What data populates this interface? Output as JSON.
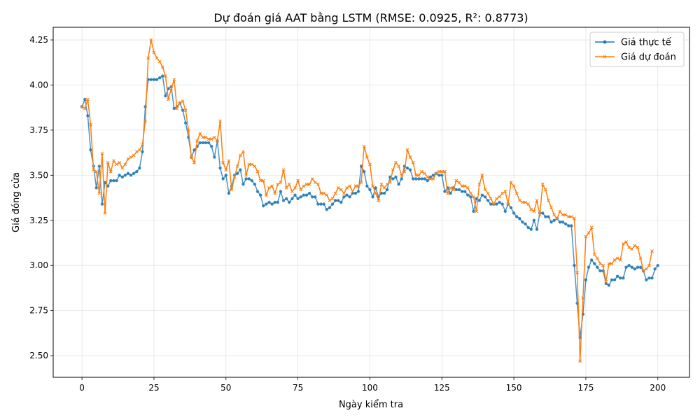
{
  "chart_data": {
    "type": "line",
    "title": "Dự đoán giá AAT bằng LSTM (RMSE: 0.0925, R²: 0.8773)",
    "xlabel": "Ngày kiểm tra",
    "ylabel": "Giá đóng cửa",
    "xlim": [
      -10,
      211
    ],
    "ylim": [
      2.38,
      4.32
    ],
    "xticks": [
      0,
      25,
      50,
      75,
      100,
      125,
      150,
      175,
      200
    ],
    "yticks": [
      2.5,
      2.75,
      3.0,
      3.25,
      3.5,
      3.75,
      4.0,
      4.25
    ],
    "ytick_labels": [
      "2.50",
      "2.75",
      "3.00",
      "3.25",
      "3.50",
      "3.75",
      "4.00",
      "4.25"
    ],
    "grid": true,
    "legend_position": "top-right",
    "series": [
      {
        "name": "Giá thực tế",
        "color": "#1f77b4",
        "marker": "circle",
        "x_start": 0,
        "values": [
          3.88,
          3.92,
          3.83,
          3.64,
          3.55,
          3.43,
          3.55,
          3.34,
          3.46,
          3.44,
          3.47,
          3.47,
          3.47,
          3.5,
          3.49,
          3.5,
          3.51,
          3.5,
          3.51,
          3.52,
          3.54,
          3.63,
          3.88,
          4.03,
          4.03,
          4.03,
          4.03,
          4.04,
          4.05,
          3.94,
          3.98,
          3.99,
          3.87,
          3.88,
          3.9,
          3.86,
          3.79,
          3.71,
          3.6,
          3.64,
          3.66,
          3.68,
          3.68,
          3.68,
          3.68,
          3.66,
          3.6,
          3.69,
          3.54,
          3.48,
          3.5,
          3.4,
          3.44,
          3.5,
          3.51,
          3.53,
          3.45,
          3.48,
          3.48,
          3.47,
          3.45,
          3.41,
          3.39,
          3.33,
          3.34,
          3.35,
          3.34,
          3.35,
          3.35,
          3.41,
          3.36,
          3.37,
          3.35,
          3.37,
          3.39,
          3.37,
          3.38,
          3.39,
          3.39,
          3.4,
          3.38,
          3.38,
          3.34,
          3.34,
          3.34,
          3.31,
          3.32,
          3.34,
          3.36,
          3.36,
          3.35,
          3.38,
          3.39,
          3.38,
          3.4,
          3.4,
          3.41,
          3.55,
          3.52,
          3.44,
          3.42,
          3.38,
          3.43,
          3.38,
          3.4,
          3.4,
          3.42,
          3.49,
          3.48,
          3.49,
          3.45,
          3.48,
          3.55,
          3.54,
          3.53,
          3.48,
          3.48,
          3.48,
          3.48,
          3.48,
          3.47,
          3.49,
          3.5,
          3.51,
          3.5,
          3.5,
          3.41,
          3.43,
          3.4,
          3.43,
          3.42,
          3.42,
          3.41,
          3.41,
          3.39,
          3.38,
          3.3,
          3.37,
          3.36,
          3.39,
          3.38,
          3.36,
          3.34,
          3.34,
          3.34,
          3.35,
          3.34,
          3.3,
          3.34,
          3.32,
          3.29,
          3.27,
          3.26,
          3.24,
          3.23,
          3.21,
          3.2,
          3.25,
          3.2,
          3.29,
          3.29,
          3.27,
          3.27,
          3.24,
          3.25,
          3.26,
          3.24,
          3.24,
          3.23,
          3.22,
          3.22,
          3.0,
          2.79,
          2.6,
          2.73,
          2.92,
          2.99,
          3.03,
          3.01,
          2.99,
          2.97,
          2.97,
          2.9,
          2.89,
          2.92,
          2.92,
          2.94,
          2.93,
          2.93,
          2.99,
          3.0,
          2.99,
          2.98,
          2.99,
          2.99,
          2.97,
          2.92,
          2.93,
          2.93,
          2.98,
          3.0
        ]
      },
      {
        "name": "Giá dự đoán",
        "color": "#ff7f0e",
        "marker": "x",
        "x_start": 0,
        "values": [
          3.88,
          3.87,
          3.92,
          3.78,
          3.53,
          3.52,
          3.4,
          3.62,
          3.29,
          3.57,
          3.52,
          3.58,
          3.56,
          3.57,
          3.54,
          3.56,
          3.59,
          3.6,
          3.61,
          3.63,
          3.64,
          3.67,
          3.8,
          4.15,
          4.25,
          4.18,
          4.15,
          4.13,
          4.1,
          4.05,
          3.92,
          3.98,
          4.03,
          3.87,
          3.9,
          3.91,
          3.86,
          3.75,
          3.6,
          3.57,
          3.69,
          3.73,
          3.71,
          3.71,
          3.7,
          3.7,
          3.71,
          3.69,
          3.8,
          3.57,
          3.53,
          3.58,
          3.42,
          3.49,
          3.55,
          3.61,
          3.63,
          3.5,
          3.56,
          3.56,
          3.55,
          3.52,
          3.47,
          3.47,
          3.39,
          3.43,
          3.44,
          3.4,
          3.45,
          3.46,
          3.53,
          3.43,
          3.45,
          3.41,
          3.43,
          3.47,
          3.42,
          3.44,
          3.45,
          3.45,
          3.48,
          3.46,
          3.45,
          3.4,
          3.4,
          3.39,
          3.36,
          3.37,
          3.4,
          3.43,
          3.42,
          3.4,
          3.43,
          3.44,
          3.41,
          3.44,
          3.44,
          3.46,
          3.66,
          3.6,
          3.56,
          3.44,
          3.4,
          3.36,
          3.45,
          3.43,
          3.45,
          3.46,
          3.53,
          3.57,
          3.55,
          3.5,
          3.52,
          3.64,
          3.6,
          3.57,
          3.5,
          3.5,
          3.52,
          3.51,
          3.49,
          3.48,
          3.48,
          3.51,
          3.52,
          3.52,
          3.52,
          3.4,
          3.43,
          3.42,
          3.47,
          3.46,
          3.44,
          3.44,
          3.43,
          3.4,
          3.38,
          3.3,
          3.45,
          3.5,
          3.42,
          3.4,
          3.37,
          3.34,
          3.37,
          3.38,
          3.4,
          3.41,
          3.34,
          3.46,
          3.44,
          3.4,
          3.36,
          3.35,
          3.35,
          3.34,
          3.31,
          3.3,
          3.36,
          3.28,
          3.45,
          3.42,
          3.36,
          3.32,
          3.28,
          3.26,
          3.3,
          3.28,
          3.28,
          3.27,
          3.27,
          3.26,
          2.96,
          2.47,
          2.82,
          3.16,
          3.18,
          3.21,
          3.06,
          3.04,
          3.01,
          3.0,
          2.91,
          3.01,
          3.01,
          3.03,
          3.04,
          3.03,
          3.12,
          3.13,
          3.1,
          3.09,
          3.11,
          3.1,
          3.04,
          2.97,
          2.98,
          3.0,
          3.08
        ]
      }
    ]
  }
}
